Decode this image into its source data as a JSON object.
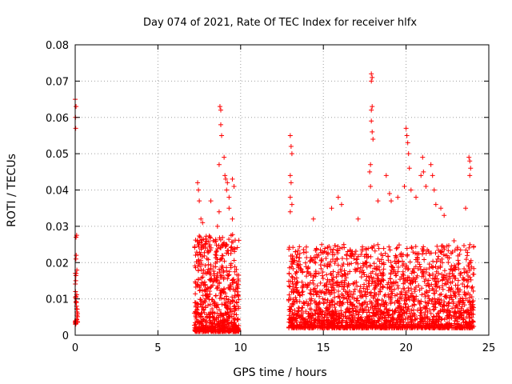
{
  "chart_data": {
    "type": "scatter",
    "title": "Day 074 of 2021, Rate Of TEC Index for receiver hlfx",
    "xlabel": "GPS time / hours",
    "ylabel": "ROTI / TECUs",
    "xlim": [
      0,
      25
    ],
    "ylim": [
      0,
      0.08
    ],
    "x_ticks": [
      0,
      5,
      10,
      15,
      20,
      25
    ],
    "x_tick_labels": [
      "0",
      "5",
      "10",
      "15",
      "20",
      "25"
    ],
    "y_ticks": [
      0,
      0.01,
      0.02,
      0.03,
      0.04,
      0.05,
      0.06,
      0.07,
      0.08
    ],
    "y_tick_labels": [
      "0",
      "0.01",
      "0.02",
      "0.03",
      "0.04",
      "0.05",
      "0.06",
      "0.07",
      "0.08"
    ],
    "grid": true,
    "marker": "+",
    "marker_color": "#ff0000",
    "series": [
      {
        "name": "ROTI",
        "clusters": [
          {
            "x_range": [
              0.0,
              0.15
            ],
            "y_range": [
              0.003,
              0.028
            ],
            "count": 30
          },
          {
            "x_range": [
              7.2,
              9.9
            ],
            "y_range": [
              0.001,
              0.028
            ],
            "count": 700
          },
          {
            "x_range": [
              12.9,
              24.1
            ],
            "y_range": [
              0.002,
              0.025
            ],
            "count": 2200
          }
        ],
        "points": [
          [
            0.0,
            0.065
          ],
          [
            0.05,
            0.063
          ],
          [
            0.02,
            0.06
          ],
          [
            0.03,
            0.057
          ],
          [
            0.05,
            0.027
          ],
          [
            0.06,
            0.022
          ],
          [
            0.04,
            0.021
          ],
          [
            0.06,
            0.017
          ],
          [
            0.02,
            0.012
          ],
          [
            0.05,
            0.009
          ],
          [
            0.08,
            0.008
          ],
          [
            0.03,
            0.004
          ],
          [
            7.4,
            0.042
          ],
          [
            7.45,
            0.04
          ],
          [
            7.5,
            0.037
          ],
          [
            7.6,
            0.032
          ],
          [
            7.7,
            0.031
          ],
          [
            8.2,
            0.037
          ],
          [
            8.6,
            0.03
          ],
          [
            8.7,
            0.034
          ],
          [
            8.75,
            0.063
          ],
          [
            8.8,
            0.062
          ],
          [
            8.8,
            0.058
          ],
          [
            8.85,
            0.055
          ],
          [
            8.7,
            0.047
          ],
          [
            9.0,
            0.049
          ],
          [
            9.05,
            0.044
          ],
          [
            9.1,
            0.043
          ],
          [
            9.2,
            0.042
          ],
          [
            9.15,
            0.04
          ],
          [
            9.3,
            0.038
          ],
          [
            9.5,
            0.043
          ],
          [
            9.6,
            0.041
          ],
          [
            9.3,
            0.035
          ],
          [
            9.5,
            0.032
          ],
          [
            13.0,
            0.055
          ],
          [
            13.05,
            0.052
          ],
          [
            13.1,
            0.05
          ],
          [
            13.0,
            0.044
          ],
          [
            13.05,
            0.042
          ],
          [
            13.0,
            0.038
          ],
          [
            13.1,
            0.036
          ],
          [
            13.0,
            0.034
          ],
          [
            14.4,
            0.032
          ],
          [
            15.5,
            0.035
          ],
          [
            15.9,
            0.038
          ],
          [
            16.1,
            0.036
          ],
          [
            17.1,
            0.032
          ],
          [
            17.9,
            0.072
          ],
          [
            17.95,
            0.071
          ],
          [
            17.9,
            0.07
          ],
          [
            17.95,
            0.063
          ],
          [
            17.9,
            0.062
          ],
          [
            17.9,
            0.059
          ],
          [
            17.95,
            0.056
          ],
          [
            18.0,
            0.054
          ],
          [
            17.85,
            0.047
          ],
          [
            17.8,
            0.045
          ],
          [
            17.85,
            0.041
          ],
          [
            18.3,
            0.037
          ],
          [
            18.8,
            0.044
          ],
          [
            19.0,
            0.039
          ],
          [
            19.1,
            0.037
          ],
          [
            19.5,
            0.038
          ],
          [
            19.9,
            0.041
          ],
          [
            20.0,
            0.057
          ],
          [
            20.05,
            0.055
          ],
          [
            20.1,
            0.053
          ],
          [
            20.15,
            0.05
          ],
          [
            20.2,
            0.046
          ],
          [
            20.3,
            0.04
          ],
          [
            20.6,
            0.038
          ],
          [
            20.9,
            0.044
          ],
          [
            21.0,
            0.049
          ],
          [
            21.05,
            0.045
          ],
          [
            21.2,
            0.041
          ],
          [
            21.5,
            0.047
          ],
          [
            21.6,
            0.044
          ],
          [
            21.7,
            0.04
          ],
          [
            21.8,
            0.036
          ],
          [
            22.1,
            0.035
          ],
          [
            22.3,
            0.033
          ],
          [
            22.9,
            0.026
          ],
          [
            23.6,
            0.035
          ],
          [
            23.8,
            0.049
          ],
          [
            23.85,
            0.048
          ],
          [
            23.9,
            0.046
          ],
          [
            23.85,
            0.044
          ]
        ]
      }
    ]
  }
}
